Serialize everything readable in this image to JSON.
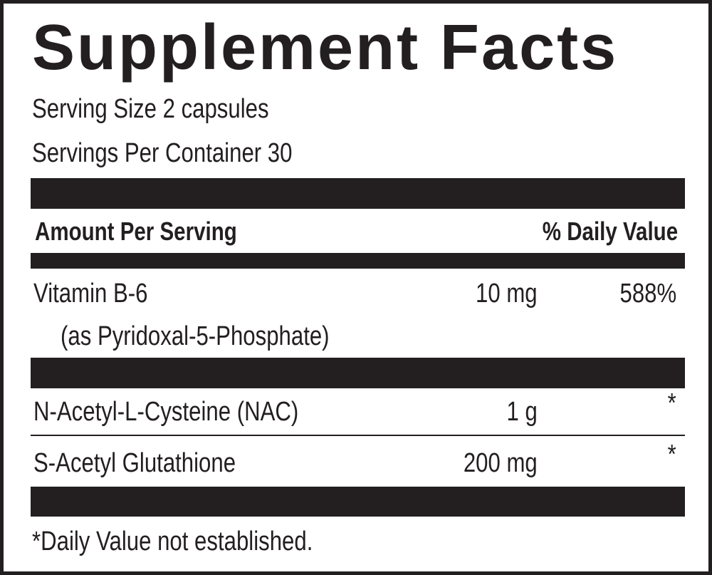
{
  "title": "Supplement Facts",
  "serving_size": "Serving Size 2 capsules",
  "servings_per_container": "Servings Per Container 30",
  "header": {
    "amount": "Amount Per Serving",
    "daily_value": "% Daily Value"
  },
  "rows": [
    {
      "name": "Vitamin B-6",
      "detail": "(as Pyridoxal-5-Phosphate)",
      "amount": "10 mg",
      "daily_value": "588%"
    },
    {
      "name": "N-Acetyl-L-Cysteine (NAC)",
      "amount": "1 g",
      "daily_value": "*"
    },
    {
      "name": "S-Acetyl Glutathione",
      "amount": "200 mg",
      "daily_value": "*"
    }
  ],
  "footnote": "*Daily Value not established."
}
